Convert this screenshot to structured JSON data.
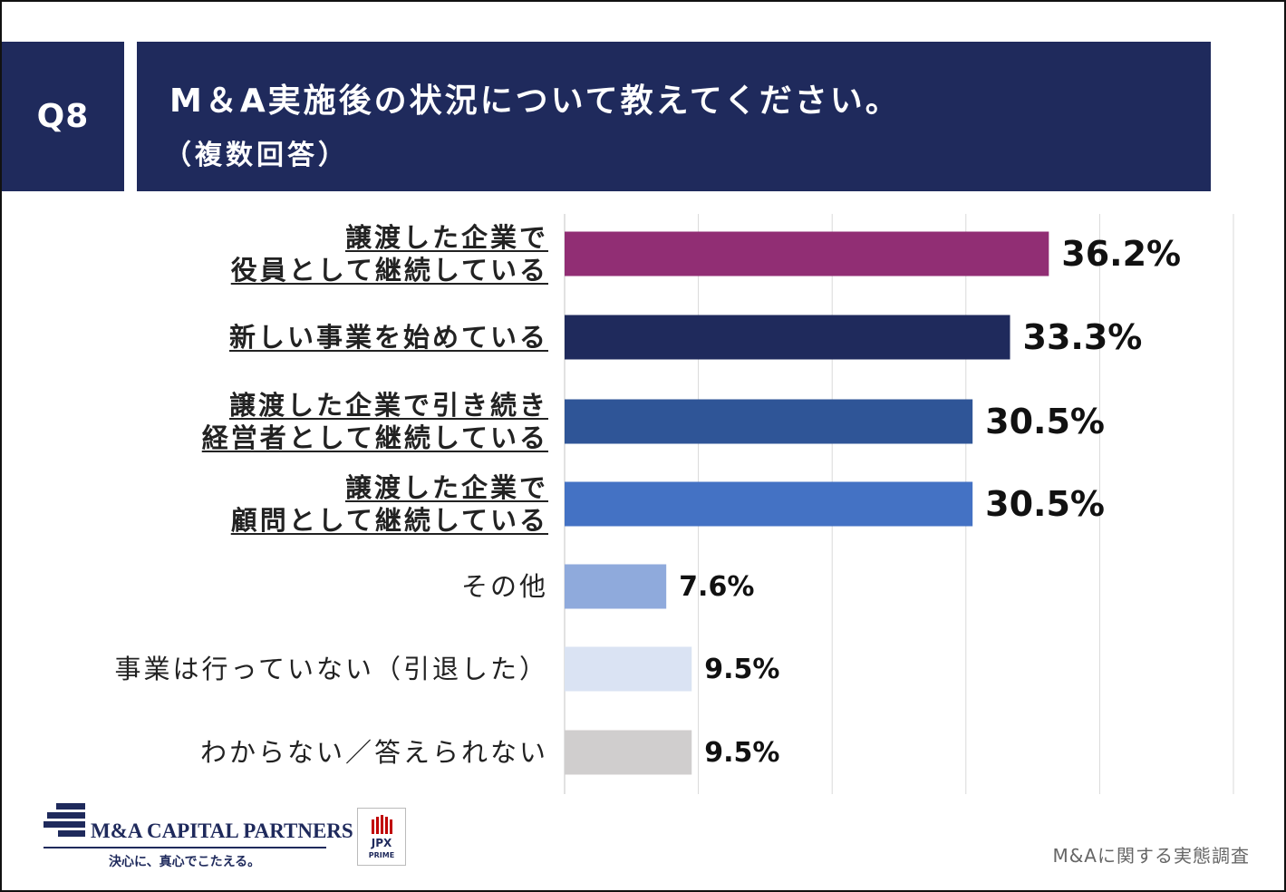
{
  "header": {
    "question_no": "Q8",
    "title": "M＆A実施後の状況について教えてください。",
    "subtitle": "（複数回答）"
  },
  "chart_data": {
    "type": "bar",
    "orientation": "horizontal",
    "categories": [
      [
        "譲渡した企業で",
        "役員として継続している"
      ],
      [
        "新しい事業を始めている"
      ],
      [
        "譲渡した企業で引き続き",
        "経営者として継続している"
      ],
      [
        "譲渡した企業で",
        "顧問として継続している"
      ],
      [
        "その他"
      ],
      [
        "事業は行っていない（引退した）"
      ],
      [
        "わからない／答えられない"
      ]
    ],
    "values": [
      36.2,
      33.3,
      30.5,
      30.5,
      7.6,
      9.5,
      9.5
    ],
    "value_labels": [
      "36.2%",
      "33.3%",
      "30.5%",
      "30.5%",
      "7.6%",
      "9.5%",
      "9.5%"
    ],
    "emphasized": [
      true,
      true,
      true,
      true,
      false,
      false,
      false
    ],
    "colors": [
      "#912e74",
      "#1f2a5c",
      "#2f5597",
      "#4472c4",
      "#8faadc",
      "#dae3f3",
      "#d0cece"
    ],
    "xlim": [
      0,
      50
    ],
    "grid_step": 10,
    "grid": true,
    "title": "M＆A実施後の状況について教えてください。",
    "xlabel": "",
    "ylabel": ""
  },
  "footer": {
    "brand": "M&A CAPITAL PARTNERS",
    "tagline": "決心に、真心でこたえる。",
    "jpx": "JPX",
    "jpx_sub": "PRIME",
    "source": "M&Aに関する実態調査"
  },
  "colors": {
    "navy": "#1f2a5c",
    "grid": "#d9d9d9"
  }
}
